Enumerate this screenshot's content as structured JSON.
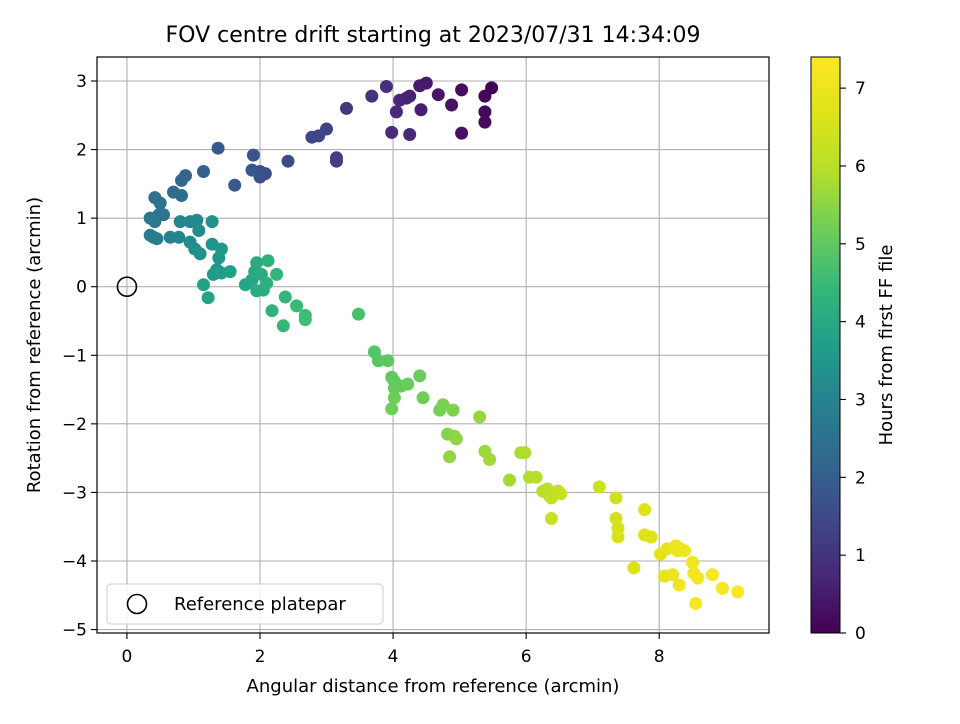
{
  "chart_data": {
    "type": "scatter",
    "title": "FOV centre drift starting at 2023/07/31 14:34:09",
    "xlabel": "Angular distance from reference (arcmin)",
    "ylabel": "Rotation from reference (arcmin)",
    "xlim": [
      -0.45,
      9.65
    ],
    "ylim": [
      -5.05,
      3.35
    ],
    "xticks": [
      0,
      2,
      4,
      6,
      8
    ],
    "yticks": [
      -5,
      -4,
      -3,
      -2,
      -1,
      0,
      1,
      2,
      3
    ],
    "xtick_labels": [
      "0",
      "2",
      "4",
      "6",
      "8"
    ],
    "ytick_labels": [
      "−5",
      "−4",
      "−3",
      "−2",
      "−1",
      "0",
      "1",
      "2",
      "3"
    ],
    "grid": true,
    "legend": {
      "placement": "lower-left",
      "entries": [
        "Reference platepar"
      ]
    },
    "colorbar": {
      "label": "Hours from first FF file",
      "range": [
        0,
        7.4
      ],
      "ticks": [
        0,
        1,
        2,
        3,
        4,
        5,
        6,
        7
      ],
      "tick_labels": [
        "0",
        "1",
        "2",
        "3",
        "4",
        "5",
        "6",
        "7"
      ],
      "colormap": "viridis"
    },
    "reference_point": {
      "x": 0,
      "y": 0,
      "label": "Reference platepar"
    },
    "series": [
      {
        "points": [
          [
            5.48,
            2.9,
            0.05
          ],
          [
            5.38,
            2.78,
            0.1
          ],
          [
            5.38,
            2.55,
            0.15
          ],
          [
            5.38,
            2.4,
            0.2
          ],
          [
            5.03,
            2.87,
            0.25
          ],
          [
            5.03,
            2.24,
            0.3
          ],
          [
            4.88,
            2.65,
            0.35
          ],
          [
            4.68,
            2.8,
            0.4
          ],
          [
            4.5,
            2.97,
            0.45
          ],
          [
            4.4,
            2.93,
            0.5
          ],
          [
            4.42,
            2.58,
            0.55
          ],
          [
            4.25,
            2.78,
            0.6
          ],
          [
            4.2,
            2.75,
            0.65
          ],
          [
            4.1,
            2.72,
            0.7
          ],
          [
            4.05,
            2.55,
            0.75
          ],
          [
            4.25,
            2.22,
            0.8
          ],
          [
            3.98,
            2.25,
            0.85
          ],
          [
            3.9,
            2.92,
            0.9
          ],
          [
            3.68,
            2.78,
            1.0
          ],
          [
            3.3,
            2.6,
            1.1
          ],
          [
            3.15,
            1.88,
            1.2
          ],
          [
            3.15,
            1.83,
            1.25
          ],
          [
            3.0,
            2.3,
            1.35
          ],
          [
            2.88,
            2.2,
            1.4
          ],
          [
            2.78,
            2.18,
            1.45
          ],
          [
            2.42,
            1.83,
            1.55
          ],
          [
            2.08,
            1.65,
            1.6
          ],
          [
            2.0,
            1.6,
            1.65
          ],
          [
            2.0,
            1.68,
            1.7
          ],
          [
            1.9,
            1.92,
            1.75
          ],
          [
            1.88,
            1.7,
            1.8
          ],
          [
            1.62,
            1.48,
            1.85
          ],
          [
            1.37,
            2.02,
            1.9
          ],
          [
            1.15,
            1.68,
            2.0
          ],
          [
            0.88,
            1.62,
            2.15
          ],
          [
            0.82,
            1.55,
            2.2
          ],
          [
            0.7,
            1.38,
            2.3
          ],
          [
            0.82,
            1.33,
            2.35
          ],
          [
            0.42,
            1.3,
            2.45
          ],
          [
            0.5,
            1.22,
            2.5
          ],
          [
            0.55,
            1.05,
            2.55
          ],
          [
            0.48,
            1.05,
            2.6
          ],
          [
            0.35,
            1.0,
            2.65
          ],
          [
            0.42,
            0.95,
            2.7
          ],
          [
            0.35,
            0.75,
            2.75
          ],
          [
            0.4,
            0.72,
            2.8
          ],
          [
            0.45,
            0.7,
            2.85
          ],
          [
            0.65,
            0.72,
            2.95
          ],
          [
            0.78,
            0.72,
            3.0
          ],
          [
            0.8,
            0.95,
            3.05
          ],
          [
            0.95,
            0.95,
            3.1
          ],
          [
            1.05,
            0.97,
            3.15
          ],
          [
            1.08,
            0.82,
            3.2
          ],
          [
            0.95,
            0.65,
            3.25
          ],
          [
            1.02,
            0.55,
            3.3
          ],
          [
            1.1,
            0.48,
            3.35
          ],
          [
            1.28,
            0.95,
            3.4
          ],
          [
            1.28,
            0.62,
            3.45
          ],
          [
            1.38,
            0.42,
            3.5
          ],
          [
            1.42,
            0.55,
            3.55
          ],
          [
            1.35,
            0.25,
            3.6
          ],
          [
            1.3,
            0.18,
            3.65
          ],
          [
            1.42,
            0.2,
            3.7
          ],
          [
            1.55,
            0.22,
            3.75
          ],
          [
            1.15,
            0.03,
            3.8
          ],
          [
            1.22,
            -0.16,
            3.85
          ],
          [
            1.78,
            0.03,
            3.9
          ],
          [
            1.88,
            0.1,
            3.95
          ],
          [
            1.92,
            0.22,
            4.0
          ],
          [
            1.95,
            0.35,
            4.05
          ],
          [
            1.95,
            -0.06,
            4.1
          ],
          [
            2.02,
            0.18,
            4.12
          ],
          [
            2.05,
            -0.05,
            4.15
          ],
          [
            2.1,
            0.05,
            4.2
          ],
          [
            2.12,
            0.38,
            4.25
          ],
          [
            2.18,
            -0.35,
            4.3
          ],
          [
            2.25,
            0.18,
            4.35
          ],
          [
            2.38,
            -0.15,
            4.4
          ],
          [
            2.35,
            -0.57,
            4.45
          ],
          [
            2.55,
            -0.28,
            4.5
          ],
          [
            2.68,
            -0.42,
            4.55
          ],
          [
            2.68,
            -0.48,
            4.6
          ],
          [
            3.48,
            -0.4,
            4.7
          ],
          [
            3.72,
            -0.95,
            4.85
          ],
          [
            3.78,
            -1.08,
            4.9
          ],
          [
            3.92,
            -1.08,
            4.95
          ],
          [
            3.98,
            -1.32,
            5.0
          ],
          [
            4.02,
            -1.38,
            5.02
          ],
          [
            4.02,
            -1.48,
            5.05
          ],
          [
            4.12,
            -1.45,
            5.08
          ],
          [
            4.22,
            -1.42,
            5.1
          ],
          [
            4.4,
            -1.3,
            5.12
          ],
          [
            4.02,
            -1.62,
            5.15
          ],
          [
            3.98,
            -1.78,
            5.18
          ],
          [
            4.45,
            -1.62,
            5.2
          ],
          [
            4.7,
            -1.8,
            5.25
          ],
          [
            4.75,
            -1.72,
            5.3
          ],
          [
            4.9,
            -1.8,
            5.35
          ],
          [
            4.82,
            -2.15,
            5.4
          ],
          [
            4.92,
            -2.18,
            5.45
          ],
          [
            4.95,
            -2.22,
            5.5
          ],
          [
            4.85,
            -2.48,
            5.55
          ],
          [
            5.3,
            -1.9,
            5.6
          ],
          [
            5.38,
            -2.4,
            5.65
          ],
          [
            5.45,
            -2.52,
            5.7
          ],
          [
            5.75,
            -2.82,
            5.75
          ],
          [
            5.92,
            -2.42,
            5.8
          ],
          [
            5.98,
            -2.42,
            5.85
          ],
          [
            6.05,
            -2.78,
            5.9
          ],
          [
            6.15,
            -2.78,
            5.95
          ],
          [
            6.25,
            -2.98,
            6.0
          ],
          [
            6.32,
            -2.95,
            6.05
          ],
          [
            6.35,
            -3.05,
            6.1
          ],
          [
            6.38,
            -3.08,
            6.15
          ],
          [
            6.48,
            -2.98,
            6.2
          ],
          [
            6.52,
            -3.02,
            6.25
          ],
          [
            6.38,
            -3.38,
            6.3
          ],
          [
            7.1,
            -2.92,
            6.35
          ],
          [
            7.35,
            -3.08,
            6.4
          ],
          [
            7.35,
            -3.38,
            6.45
          ],
          [
            7.38,
            -3.52,
            6.5
          ],
          [
            7.38,
            -3.65,
            6.55
          ],
          [
            7.62,
            -4.1,
            6.6
          ],
          [
            7.78,
            -3.25,
            6.65
          ],
          [
            7.78,
            -3.62,
            6.7
          ],
          [
            7.88,
            -3.65,
            6.75
          ],
          [
            8.02,
            -3.9,
            6.8
          ],
          [
            8.12,
            -3.82,
            6.85
          ],
          [
            8.08,
            -4.22,
            6.9
          ],
          [
            8.2,
            -4.2,
            6.95
          ],
          [
            8.25,
            -3.78,
            7.0
          ],
          [
            8.28,
            -3.85,
            7.02
          ],
          [
            8.32,
            -3.82,
            7.05
          ],
          [
            8.38,
            -3.85,
            7.08
          ],
          [
            8.3,
            -4.35,
            7.1
          ],
          [
            8.5,
            -4.02,
            7.12
          ],
          [
            8.52,
            -4.18,
            7.15
          ],
          [
            8.58,
            -4.25,
            7.18
          ],
          [
            8.55,
            -4.62,
            7.2
          ],
          [
            8.8,
            -4.2,
            7.25
          ],
          [
            8.95,
            -4.4,
            7.3
          ],
          [
            9.18,
            -4.45,
            7.35
          ]
        ]
      }
    ]
  }
}
